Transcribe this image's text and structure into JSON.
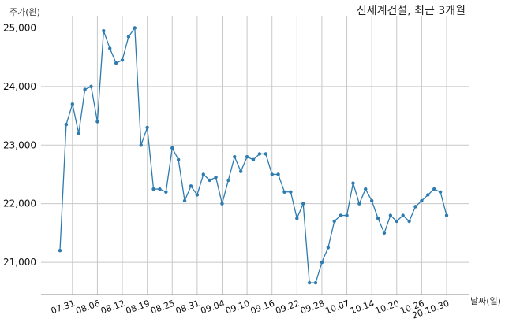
{
  "chart_data": {
    "type": "line",
    "title": "신세계건설, 최근 3개월",
    "ylabel": "주가(원)",
    "xlabel": "날짜(일)",
    "ylim": [
      20450,
      25100
    ],
    "yticks": [
      21000,
      22000,
      23000,
      24000,
      25000
    ],
    "ytick_labels": [
      "21,000",
      "22,000",
      "23,000",
      "24,000",
      "25,000"
    ],
    "grid": true,
    "line_color": "#2e7bb0",
    "x_tick_labels": [
      "07.31",
      "08.06",
      "08.12",
      "08.19",
      "08.25",
      "08.31",
      "09.04",
      "09.10",
      "09.16",
      "09.22",
      "09.28",
      "10.07",
      "10.14",
      "10.20",
      "10.26",
      "20.10.30"
    ],
    "x_tick_positions": [
      2,
      6,
      10,
      14,
      18,
      22,
      26,
      30,
      34,
      38,
      42,
      46,
      50,
      54,
      58,
      62
    ],
    "series": [
      {
        "values": [
          21200,
          23350,
          23700,
          23200,
          23950,
          24000,
          23400,
          24950,
          24650,
          24400,
          24450,
          24850,
          25000,
          23000,
          23300,
          22250,
          22250,
          22200,
          22950,
          22750,
          22050,
          22300,
          22150,
          22500,
          22400,
          22450,
          22000,
          22400,
          22800,
          22550,
          22800,
          22750,
          22850,
          22850,
          22500,
          22500,
          22200,
          22200,
          21750,
          22000,
          20650,
          20650,
          21000,
          21250,
          21700,
          21800,
          21800,
          22350,
          22000,
          22250,
          22050,
          21750,
          21500,
          21800,
          21700,
          21800,
          21700,
          21950,
          22050,
          22150,
          22250,
          22200,
          21800
        ]
      }
    ]
  }
}
